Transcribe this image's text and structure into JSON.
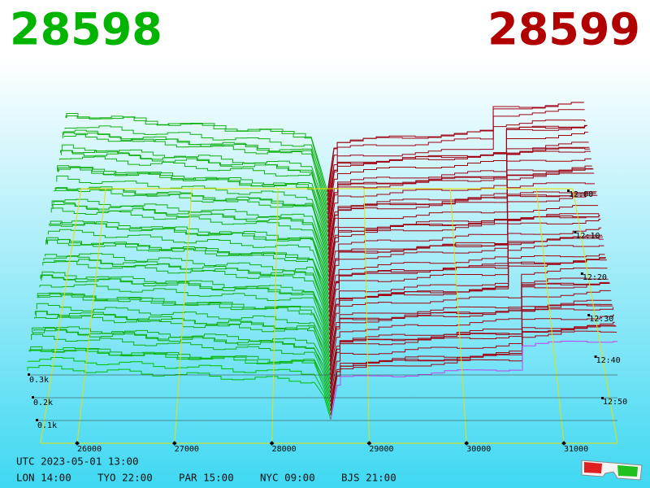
{
  "header": {
    "bid": "28598",
    "ask": "28599"
  },
  "price_axis": {
    "ticks": [
      26000,
      27000,
      28000,
      29000,
      30000,
      31000
    ]
  },
  "depth_axis": {
    "ticks": [
      {
        "value": 300,
        "label": "0.3k"
      },
      {
        "value": 200,
        "label": "0.2k"
      },
      {
        "value": 100,
        "label": "0.1k"
      }
    ]
  },
  "time_axis": {
    "ticks": [
      "12:00",
      "12:10",
      "12:20",
      "12:30",
      "12:40",
      "12:50"
    ]
  },
  "footer": {
    "utc": "UTC 2023-05-01 13:00",
    "cities": [
      "LON 14:00",
      "TYO 22:00",
      "PAR 15:00",
      "NYC 09:00",
      "BJS 21:00"
    ]
  }
}
